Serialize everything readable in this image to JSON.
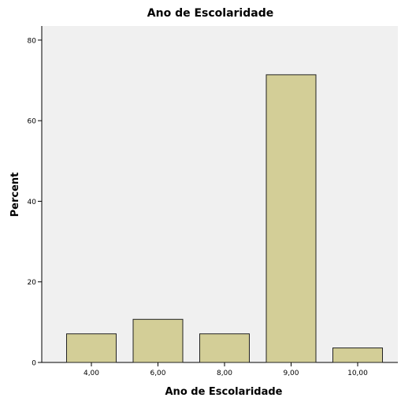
{
  "chart_data": {
    "type": "bar",
    "title": "Ano de Escolaridade",
    "xlabel": "Ano de Escolaridade",
    "ylabel": "Percent",
    "categories": [
      "4,00",
      "6,00",
      "8,00",
      "9,00",
      "10,00"
    ],
    "values": [
      7.1,
      10.7,
      7.1,
      71.4,
      3.6
    ],
    "ylim": [
      0,
      83.5
    ],
    "yticks": [
      0,
      20,
      40,
      60,
      80
    ],
    "grid": false,
    "colors": {
      "plot_background": "#F0F0F0",
      "bar_fill": "#D3CE97",
      "bar_stroke": "#222222",
      "axis": "#000000"
    }
  }
}
